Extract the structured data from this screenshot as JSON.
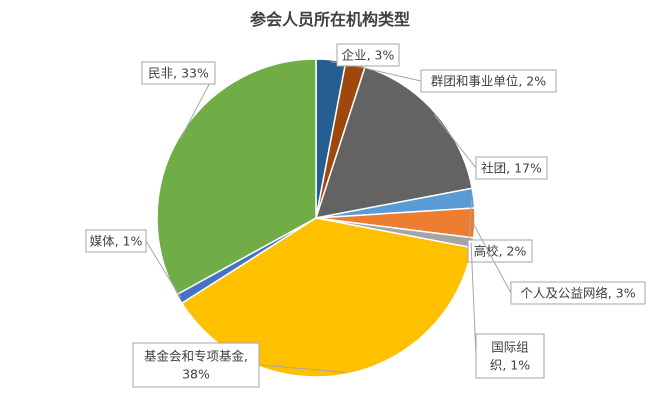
{
  "chart_data": {
    "type": "pie",
    "title": "参会人员所在机构类型",
    "start_angle_deg": 90,
    "direction": "clockwise",
    "slices": [
      {
        "label": "企业, 3%",
        "lines": [
          "企业, 3%"
        ],
        "value": 3,
        "color": "#255e91"
      },
      {
        "label": "群团和事业单位, 2%",
        "lines": [
          "群团和事业单位, 2%"
        ],
        "value": 2,
        "color": "#9e480e"
      },
      {
        "label": "社团, 17%",
        "lines": [
          "社团, 17%"
        ],
        "value": 17,
        "color": "#636363"
      },
      {
        "label": "高校, 2%",
        "lines": [
          "高校, 2%"
        ],
        "value": 2,
        "color": "#5b9bd5"
      },
      {
        "label": "个人及公益网络, 3%",
        "lines": [
          "个人及公益网络, 3%"
        ],
        "value": 3,
        "color": "#ed7d31"
      },
      {
        "label": "国际组织, 1%",
        "lines": [
          "国际组",
          "织, 1%"
        ],
        "value": 1,
        "color": "#a5a5a5"
      },
      {
        "label": "基金会和专项基金, 38%",
        "lines": [
          "基金会和专项基金,",
          "38%"
        ],
        "value": 38,
        "color": "#ffc000"
      },
      {
        "label": "媒体, 1%",
        "lines": [
          "媒体, 1%"
        ],
        "value": 1,
        "color": "#4472c4"
      },
      {
        "label": "民非, 33%",
        "lines": [
          "民非, 33%"
        ],
        "value": 33,
        "color": "#70ad47"
      }
    ]
  }
}
